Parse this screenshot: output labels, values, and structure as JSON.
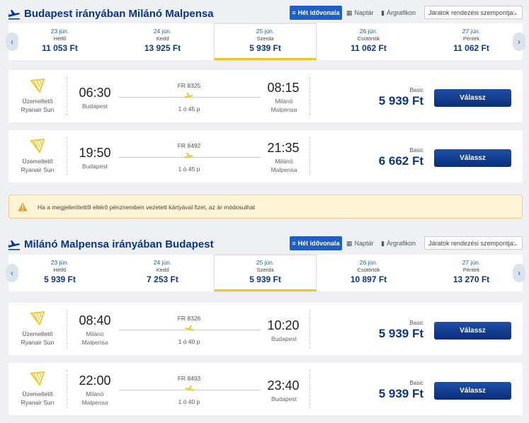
{
  "colors": {
    "brand": "#073590",
    "accent": "#1e5fc7",
    "selected_underline": "#f5c32c",
    "logo": "#f1c933"
  },
  "toolbar": {
    "week_label": "Hét idővonala",
    "calendar_label": "Naptár",
    "chart_label": "Árgrafikon",
    "sort_placeholder": "Járatok rendezési szempontja:"
  },
  "outbound": {
    "title": "Budapest irányában Milánó Malpensa",
    "dates": [
      {
        "date": "23 jún.",
        "weekday": "Hétfő",
        "price": "11 053 Ft"
      },
      {
        "date": "24 jún.",
        "weekday": "Kedd",
        "price": "13 925 Ft"
      },
      {
        "date": "25 jún.",
        "weekday": "Szerda",
        "price": "5 939 Ft"
      },
      {
        "date": "26 jún.",
        "weekday": "Csütörtök",
        "price": "11 062 Ft"
      },
      {
        "date": "27 jún.",
        "weekday": "Péntek",
        "price": "11 062 Ft"
      }
    ],
    "flights": [
      {
        "operator1": "Üzemeltető",
        "operator2": "Ryanair Sun",
        "dep_time": "06:30",
        "dep_city": "Budapest",
        "arr_time": "08:15",
        "arr_city1": "Milánó",
        "arr_city2": "Malpensa",
        "flight_no": "FR 8325",
        "duration": "1 ó 45 p",
        "fare": "Basic",
        "price": "5 939 Ft",
        "button": "Válassz"
      },
      {
        "operator1": "Üzemeltető",
        "operator2": "Ryanair Sun",
        "dep_time": "19:50",
        "dep_city": "Budapest",
        "arr_time": "21:35",
        "arr_city1": "Milánó",
        "arr_city2": "Malpensa",
        "flight_no": "FR 8492",
        "duration": "1 ó 45 p",
        "fare": "Basic",
        "price": "6 662 Ft",
        "button": "Válassz"
      }
    ]
  },
  "warning": "Ha a megjelenítettől eltérő pénznemben vezetett kártyával fizet, az ár módosulhat",
  "inbound": {
    "title": "Milánó Malpensa irányában Budapest",
    "dates": [
      {
        "date": "23 jún.",
        "weekday": "Hétfő",
        "price": "5 939 Ft"
      },
      {
        "date": "24 jún.",
        "weekday": "Kedd",
        "price": "7 253 Ft"
      },
      {
        "date": "25 jún.",
        "weekday": "Szerda",
        "price": "5 939 Ft"
      },
      {
        "date": "26 jún.",
        "weekday": "Csütörtök",
        "price": "10 897 Ft"
      },
      {
        "date": "27 jún.",
        "weekday": "Péntek",
        "price": "13 270 Ft"
      }
    ],
    "flights": [
      {
        "operator1": "Üzemeltető",
        "operator2": "Ryanair Sun",
        "dep_time": "08:40",
        "dep_city1": "Milánó",
        "dep_city2": "Malpensa",
        "arr_time": "10:20",
        "arr_city": "Budapest",
        "flight_no": "FR 8326",
        "duration": "1 ó 40 p",
        "fare": "Basic",
        "price": "5 939 Ft",
        "button": "Válassz"
      },
      {
        "operator1": "Üzemeltető",
        "operator2": "Ryanair Sun",
        "dep_time": "22:00",
        "dep_city1": "Milánó",
        "dep_city2": "Malpensa",
        "arr_time": "23:40",
        "arr_city": "Budapest",
        "flight_no": "FR 8493",
        "duration": "1 ó 40 p",
        "fare": "Basic",
        "price": "5 939 Ft",
        "button": "Válassz"
      }
    ]
  }
}
